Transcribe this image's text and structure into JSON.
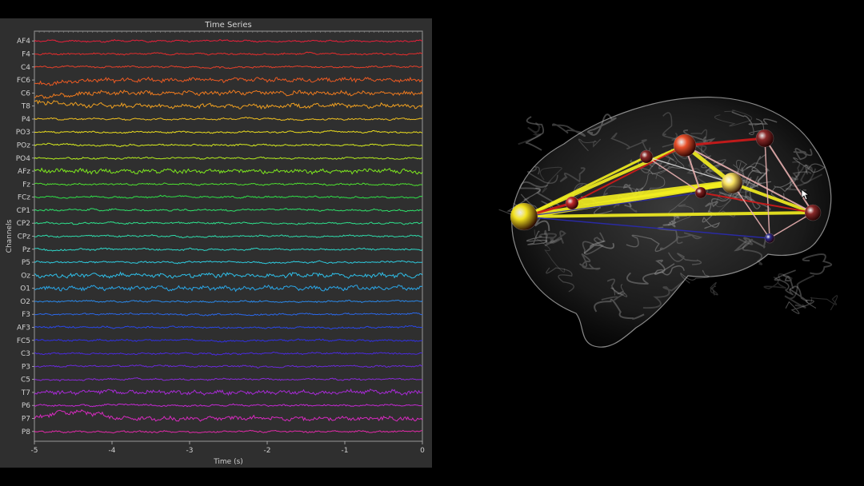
{
  "time_series": {
    "title": "Time Series",
    "xlabel": "Time (s)",
    "ylabel": "Channels",
    "x_ticks": [
      "-5",
      "-4",
      "-3",
      "-2",
      "-1",
      "0"
    ],
    "xlim": [
      -5,
      0
    ],
    "channels": [
      {
        "name": "AF4",
        "color": "#e8203a"
      },
      {
        "name": "F4",
        "color": "#e62c2c"
      },
      {
        "name": "C4",
        "color": "#e8402a"
      },
      {
        "name": "FC6",
        "color": "#ec5a22"
      },
      {
        "name": "C6",
        "color": "#ee7a1e"
      },
      {
        "name": "T8",
        "color": "#f0a020"
      },
      {
        "name": "P4",
        "color": "#f0c020"
      },
      {
        "name": "PO3",
        "color": "#eadc1e"
      },
      {
        "name": "POz",
        "color": "#d6ea1e"
      },
      {
        "name": "PO4",
        "color": "#b4ec1e"
      },
      {
        "name": "AFz",
        "color": "#7ee81e"
      },
      {
        "name": "Fz",
        "color": "#4ee030"
      },
      {
        "name": "FCz",
        "color": "#2ee048"
      },
      {
        "name": "CP1",
        "color": "#2ee06a"
      },
      {
        "name": "CP2",
        "color": "#2ee08c"
      },
      {
        "name": "CPz",
        "color": "#2edcac"
      },
      {
        "name": "Pz",
        "color": "#2ed6c8"
      },
      {
        "name": "P5",
        "color": "#2ecce0"
      },
      {
        "name": "Oz",
        "color": "#2ec0ea"
      },
      {
        "name": "O1",
        "color": "#2aa8ea"
      },
      {
        "name": "O2",
        "color": "#2a88ea"
      },
      {
        "name": "F3",
        "color": "#2a68ea"
      },
      {
        "name": "AF3",
        "color": "#2a48ea"
      },
      {
        "name": "FC5",
        "color": "#3030e4"
      },
      {
        "name": "C3",
        "color": "#4a2ae0"
      },
      {
        "name": "P3",
        "color": "#6a2adc"
      },
      {
        "name": "C5",
        "color": "#8a2ad8"
      },
      {
        "name": "T7",
        "color": "#a82ad6"
      },
      {
        "name": "P6",
        "color": "#c42ad2"
      },
      {
        "name": "P7",
        "color": "#d82ac0"
      },
      {
        "name": "P8",
        "color": "#e22aa8"
      }
    ]
  },
  "brain_view": {
    "nodes": [
      {
        "id": "n1",
        "color": "#f2e21e"
      },
      {
        "id": "n2",
        "color": "#c02a2a"
      },
      {
        "id": "n3",
        "color": "#e8502a"
      },
      {
        "id": "n4",
        "color": "#8a2a2a"
      },
      {
        "id": "n5",
        "color": "#f6e060"
      },
      {
        "id": "n6",
        "color": "#8a2a2a"
      },
      {
        "id": "n7",
        "color": "#8a2a2a"
      },
      {
        "id": "n8",
        "color": "#7a1e1e"
      },
      {
        "id": "n9",
        "color": "#2a2a8a"
      }
    ],
    "edge_colors": {
      "strong": "#f4f020",
      "medium": "#d01a1a",
      "weak": "#e8b0b0",
      "negative": "#2a2ab0",
      "neutral": "#e0e0e0"
    }
  }
}
